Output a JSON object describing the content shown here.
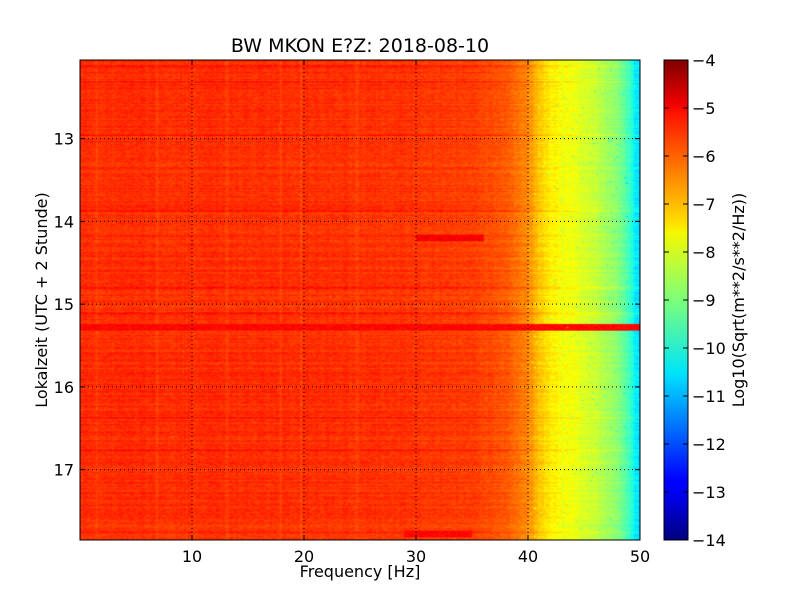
{
  "chart_data": {
    "type": "heatmap",
    "title": "BW MKON E?Z: 2018-08-10",
    "xlabel": "Frequency [Hz]",
    "ylabel": "Lokalzeit (UTC + 2 Stunde)",
    "xlim": [
      0,
      50
    ],
    "ylim": [
      12.05,
      17.85
    ],
    "y_inverted": true,
    "x_ticks": [
      10,
      20,
      30,
      40,
      50
    ],
    "y_ticks": [
      13,
      14,
      15,
      16,
      17
    ],
    "grid": true,
    "grid_style": "dotted",
    "colormap": "jet",
    "colorbar": {
      "label": "Log10(Sqrt(m**2/s**2/Hz))",
      "range": [
        -14,
        -4
      ],
      "ticks": [
        -4,
        -5,
        -6,
        -7,
        -8,
        -9,
        -10,
        -11,
        -12,
        -13,
        -14
      ]
    },
    "frequency_profile": {
      "frequency_hz": [
        0,
        10,
        20,
        30,
        35,
        38,
        40,
        41,
        42,
        44,
        46,
        48,
        49,
        50
      ],
      "level": [
        -5.7,
        -5.7,
        -5.7,
        -5.75,
        -5.85,
        -6.1,
        -6.6,
        -7.2,
        -7.6,
        -7.9,
        -8.3,
        -8.9,
        -9.6,
        -10.7
      ]
    },
    "notable_features": [
      {
        "time": 15.28,
        "frequency_range_hz": [
          0,
          50
        ],
        "level": -5.3
      },
      {
        "time": 14.2,
        "frequency_range_hz": [
          30,
          36
        ],
        "level": -5.2
      },
      {
        "time": 17.78,
        "frequency_range_hz": [
          29,
          35
        ],
        "level": -5.3
      }
    ]
  }
}
